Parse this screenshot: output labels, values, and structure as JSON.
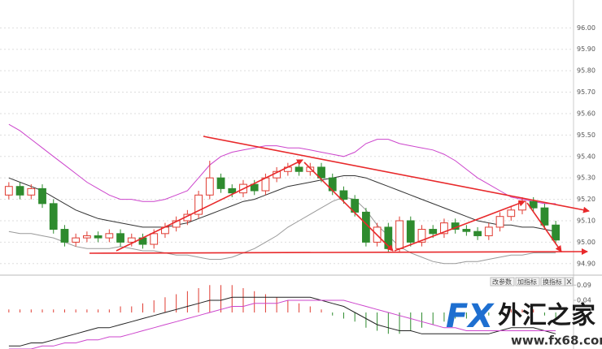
{
  "chart_data": [
    {
      "type": "candlestick",
      "ylim": [
        94.85,
        96.13
      ],
      "yticks": [
        {
          "value": 96.0,
          "label": "96.00"
        },
        {
          "value": 95.9,
          "label": "95.90"
        },
        {
          "value": 95.8,
          "label": "95.80"
        },
        {
          "value": 95.7,
          "label": "95.70"
        },
        {
          "value": 95.6,
          "label": "95.60"
        },
        {
          "value": 95.5,
          "label": "95.50"
        },
        {
          "value": 95.4,
          "label": "95.40"
        },
        {
          "value": 95.3,
          "label": "95.30"
        },
        {
          "value": 95.2,
          "label": "95.20"
        },
        {
          "value": 95.1,
          "label": "95.10"
        },
        {
          "value": 95.0,
          "label": "95.00"
        },
        {
          "value": 94.9,
          "label": "94.90"
        }
      ],
      "grid": true,
      "up_color": "#e03c32",
      "down_color": "#2e8b2e",
      "open": [
        95.22,
        95.26,
        95.22,
        95.25,
        95.18,
        95.06,
        95.0,
        95.02,
        95.03,
        95.02,
        95.04,
        95.0,
        95.02,
        94.99,
        95.04,
        95.07,
        95.1,
        95.13,
        95.22,
        95.3,
        95.25,
        95.23,
        95.27,
        95.24,
        95.3,
        95.33,
        95.35,
        95.33,
        95.35,
        95.3,
        95.24,
        95.2,
        95.14,
        95.0,
        95.07,
        94.97,
        95.1,
        95.0,
        95.06,
        95.04,
        95.09,
        95.06,
        95.05,
        95.03,
        95.07,
        95.12,
        95.15,
        95.19,
        95.16,
        95.08
      ],
      "high": [
        95.28,
        95.28,
        95.27,
        95.27,
        95.2,
        95.08,
        95.04,
        95.05,
        95.05,
        95.06,
        95.06,
        95.04,
        95.04,
        95.06,
        95.09,
        95.12,
        95.15,
        95.24,
        95.38,
        95.32,
        95.27,
        95.29,
        95.29,
        95.32,
        95.35,
        95.37,
        95.37,
        95.37,
        95.37,
        95.32,
        95.26,
        95.22,
        95.16,
        95.09,
        95.09,
        95.12,
        95.12,
        95.08,
        95.08,
        95.11,
        95.11,
        95.08,
        95.07,
        95.09,
        95.14,
        95.17,
        95.21,
        95.21,
        95.18,
        95.1
      ],
      "low": [
        95.2,
        95.2,
        95.2,
        95.16,
        95.04,
        94.98,
        94.98,
        95.0,
        95.0,
        95.0,
        94.98,
        94.98,
        94.97,
        94.97,
        95.02,
        95.05,
        95.08,
        95.11,
        95.2,
        95.23,
        95.21,
        95.21,
        95.22,
        95.22,
        95.28,
        95.31,
        95.31,
        95.31,
        95.28,
        95.22,
        95.18,
        95.12,
        94.98,
        94.98,
        94.95,
        94.95,
        94.98,
        94.98,
        95.02,
        95.02,
        95.04,
        95.03,
        95.01,
        95.01,
        95.05,
        95.1,
        95.13,
        95.14,
        95.06,
        94.99
      ],
      "close": [
        95.26,
        95.22,
        95.25,
        95.18,
        95.06,
        95.0,
        95.02,
        95.03,
        95.02,
        95.04,
        95.0,
        95.02,
        94.99,
        95.04,
        95.07,
        95.1,
        95.13,
        95.22,
        95.3,
        95.25,
        95.23,
        95.27,
        95.24,
        95.3,
        95.33,
        95.35,
        95.33,
        95.35,
        95.3,
        95.24,
        95.2,
        95.14,
        95.0,
        95.07,
        94.97,
        95.1,
        95.0,
        95.06,
        95.04,
        95.09,
        95.06,
        95.05,
        95.03,
        95.07,
        95.12,
        95.15,
        95.19,
        95.16,
        95.08,
        95.01
      ],
      "series": [
        {
          "color": "#cc44cc",
          "values": [
            95.55,
            95.52,
            95.48,
            95.44,
            95.4,
            95.36,
            95.32,
            95.28,
            95.25,
            95.22,
            95.2,
            95.2,
            95.19,
            95.19,
            95.2,
            95.22,
            95.24,
            95.3,
            95.36,
            95.4,
            95.42,
            95.43,
            95.44,
            95.45,
            95.45,
            95.44,
            95.44,
            95.43,
            95.42,
            95.41,
            95.4,
            95.42,
            95.46,
            95.48,
            95.48,
            95.46,
            95.45,
            95.44,
            95.43,
            95.41,
            95.38,
            95.34,
            95.3,
            95.27,
            95.24,
            95.21,
            95.2,
            95.19,
            95.18,
            95.18
          ]
        },
        {
          "color": "#333333",
          "values": [
            95.3,
            95.28,
            95.26,
            95.24,
            95.21,
            95.18,
            95.15,
            95.13,
            95.11,
            95.1,
            95.09,
            95.08,
            95.07,
            95.07,
            95.07,
            95.08,
            95.09,
            95.11,
            95.13,
            95.15,
            95.17,
            95.19,
            95.2,
            95.22,
            95.24,
            95.26,
            95.27,
            95.28,
            95.29,
            95.3,
            95.31,
            95.31,
            95.3,
            95.28,
            95.26,
            95.24,
            95.22,
            95.2,
            95.18,
            95.16,
            95.14,
            95.12,
            95.1,
            95.09,
            95.08,
            95.08,
            95.07,
            95.07,
            95.06,
            95.05
          ]
        },
        {
          "color": "#999999",
          "values": [
            95.05,
            95.04,
            95.04,
            95.03,
            95.02,
            95.0,
            94.98,
            94.97,
            94.97,
            94.97,
            94.98,
            94.97,
            94.96,
            94.96,
            94.95,
            94.94,
            94.94,
            94.93,
            94.92,
            94.92,
            94.93,
            94.95,
            94.97,
            95.0,
            95.03,
            95.07,
            95.1,
            95.13,
            95.16,
            95.19,
            95.21,
            95.2,
            95.15,
            95.08,
            95.03,
            94.98,
            94.95,
            94.93,
            94.91,
            94.9,
            94.9,
            94.91,
            94.91,
            94.92,
            94.93,
            94.94,
            94.94,
            94.95,
            94.95,
            94.95
          ]
        }
      ]
    },
    {
      "type": "macd",
      "ylim": [
        -0.12,
        0.12
      ],
      "yticks": [
        0.09,
        0.04
      ],
      "up_color": "#e03c32",
      "down_color": "#2e8b2e",
      "histogram": [
        0.01,
        0.01,
        0.01,
        0.01,
        0.01,
        0.01,
        0.01,
        0.01,
        0.01,
        0.01,
        0.02,
        0.02,
        0.03,
        0.04,
        0.05,
        0.06,
        0.07,
        0.08,
        0.09,
        0.09,
        0.09,
        0.08,
        0.07,
        0.06,
        0.05,
        0.04,
        0.03,
        0.02,
        0.01,
        -0.01,
        -0.02,
        -0.03,
        -0.05,
        -0.06,
        -0.07,
        -0.07,
        -0.06,
        -0.05,
        -0.04,
        -0.03,
        -0.02,
        -0.02,
        -0.01,
        -0.01,
        -0.01,
        0.01,
        0.01,
        0.01,
        -0.01,
        -0.02
      ],
      "series": [
        {
          "color": "#222222",
          "values": [
            -0.11,
            -0.11,
            -0.1,
            -0.1,
            -0.09,
            -0.08,
            -0.07,
            -0.06,
            -0.05,
            -0.05,
            -0.04,
            -0.03,
            -0.02,
            -0.01,
            0.0,
            0.01,
            0.02,
            0.03,
            0.04,
            0.04,
            0.05,
            0.05,
            0.05,
            0.05,
            0.05,
            0.05,
            0.05,
            0.05,
            0.04,
            0.03,
            0.02,
            0.0,
            -0.02,
            -0.04,
            -0.05,
            -0.06,
            -0.06,
            -0.07,
            -0.07,
            -0.07,
            -0.07,
            -0.07,
            -0.07,
            -0.07,
            -0.06,
            -0.05,
            -0.05,
            -0.05,
            -0.06,
            -0.07
          ]
        },
        {
          "color": "#cc44cc",
          "values": [
            -0.12,
            -0.12,
            -0.12,
            -0.11,
            -0.11,
            -0.1,
            -0.1,
            -0.09,
            -0.09,
            -0.08,
            -0.08,
            -0.07,
            -0.06,
            -0.05,
            -0.04,
            -0.03,
            -0.02,
            -0.01,
            0.0,
            0.01,
            0.02,
            0.02,
            0.03,
            0.03,
            0.03,
            0.04,
            0.04,
            0.04,
            0.04,
            0.04,
            0.04,
            0.03,
            0.02,
            0.01,
            0.0,
            -0.01,
            -0.02,
            -0.03,
            -0.04,
            -0.05,
            -0.05,
            -0.06,
            -0.06,
            -0.06,
            -0.06,
            -0.06,
            -0.06,
            -0.06,
            -0.06,
            -0.06
          ]
        }
      ]
    }
  ],
  "toolbar": [
    "改参数",
    "加指标",
    "换指标"
  ],
  "watermark": {
    "brand": "FX",
    "name": "外汇之家",
    "url": "www.fx68.com"
  }
}
